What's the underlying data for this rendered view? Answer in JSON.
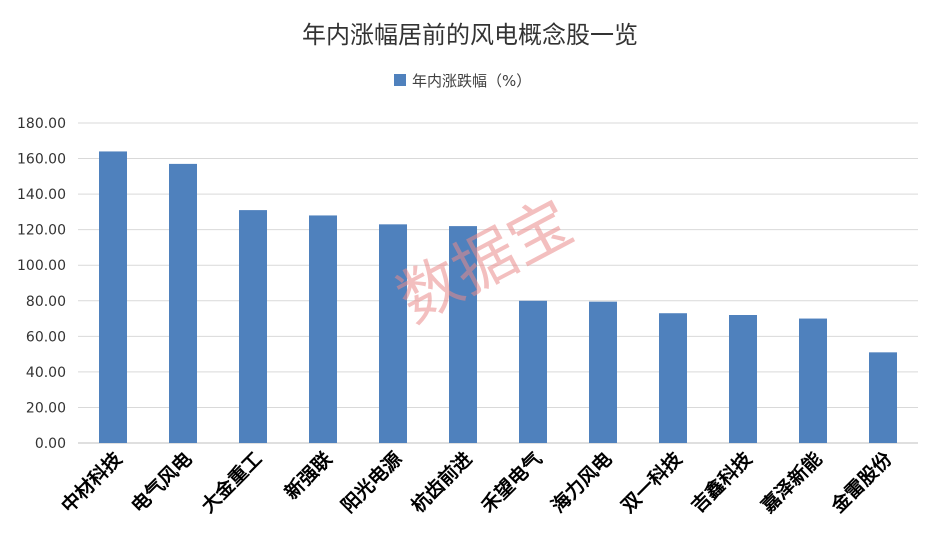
{
  "chart_data": {
    "type": "bar",
    "title": "年内涨幅居前的风电概念股一览",
    "legend": "年内涨跌幅（%）",
    "legend_position": "top",
    "categories": [
      "中材科技",
      "电气风电",
      "大金重工",
      "新强联",
      "阳光电源",
      "杭齿前进",
      "禾望电气",
      "海力风电",
      "双一科技",
      "吉鑫科技",
      "嘉泽新能",
      "金雷股份"
    ],
    "series": [
      {
        "name": "年内涨跌幅（%）",
        "values": [
          164,
          157,
          131,
          128,
          123,
          122,
          80,
          79.5,
          73,
          72,
          70,
          51
        ]
      }
    ],
    "ylim": [
      0,
      180
    ],
    "yticks": [
      "0.00",
      "20.00",
      "40.00",
      "60.00",
      "80.00",
      "100.00",
      "120.00",
      "140.00",
      "160.00",
      "180.00"
    ],
    "grid": true,
    "colors": {
      "bar": "#4f81bd",
      "grid": "#d9d9d9",
      "watermark": "#e98a8a"
    }
  },
  "watermark": "数据宝"
}
